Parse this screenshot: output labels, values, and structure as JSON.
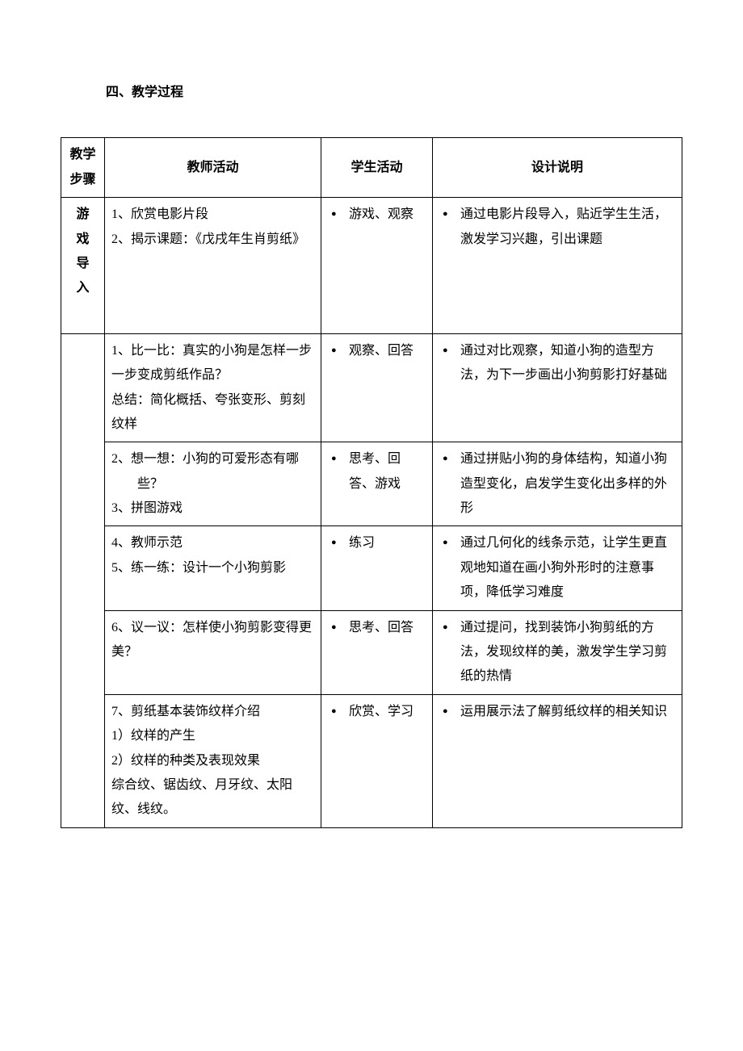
{
  "section_title": "四、教学过程",
  "table": {
    "headers": {
      "step": "教学步骤",
      "teacher": "教师活动",
      "student": "学生活动",
      "design": "设计说明"
    },
    "rows": [
      {
        "step": "游戏导入",
        "teacher": {
          "line1": "1、欣赏电影片段",
          "line2": "2、揭示课题：《戊戌年生肖剪纸》"
        },
        "student": "游戏、观察",
        "design": "通过电影片段导入，贴近学生生活，激发学习兴趣，引出课题"
      },
      {
        "teacher": {
          "line1": "1、比一比：真实的小狗是怎样一步一步变成剪纸作品？",
          "line2": "总结：简化概括、夸张变形、剪刻纹样"
        },
        "student": "观察、回答",
        "design": "通过对比观察，知道小狗的造型方法，为下一步画出小狗剪影打好基础"
      },
      {
        "teacher": {
          "line1": "2、想一想：小狗的可爱形态有哪",
          "line1b": "些？",
          "line2": "3、拼图游戏"
        },
        "student": "思考、回答、游戏",
        "design": "通过拼贴小狗的身体结构，知道小狗造型变化，启发学生变化出多样的外形"
      },
      {
        "teacher": {
          "line1": "4、教师示范",
          "line2": "5、练一练：设计一个小狗剪影"
        },
        "student": "练习",
        "design": "通过几何化的线条示范，让学生更直观地知道在画小狗外形时的注意事项，降低学习难度"
      },
      {
        "teacher": {
          "line1": "6、议一议：怎样使小狗剪影变得更美？"
        },
        "student": "思考、回答",
        "design": "通过提问，找到装饰小狗剪纸的方法，发现纹样的美，激发学生学习剪纸的热情"
      },
      {
        "teacher": {
          "line1": "7、剪纸基本装饰纹样介绍",
          "line2": "1）纹样的产生",
          "line3": "2）纹样的种类及表现效果",
          "line4": "综合纹、锯齿纹、月牙纹、太阳纹、线纹。"
        },
        "student": "欣赏、学习",
        "design": "运用展示法了解剪纸纹样的相关知识"
      }
    ]
  },
  "colors": {
    "text": "#000000",
    "background": "#ffffff",
    "border": "#000000"
  },
  "typography": {
    "font_family": "SimSun",
    "font_size_body": 16,
    "line_height": 1.9
  }
}
